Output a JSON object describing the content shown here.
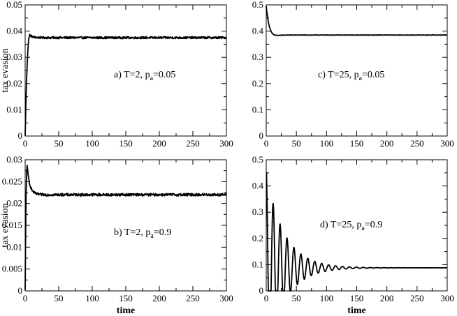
{
  "chart_data": [
    {
      "id": "a",
      "type": "line",
      "annotation": {
        "main": "a) T=2, p",
        "sub": "a",
        "tail": "=0.05"
      },
      "xlabel": "",
      "ylabel": "tax evasion",
      "xlim": [
        0,
        300
      ],
      "ylim": [
        0,
        0.05
      ],
      "xticks": [
        "0",
        "50",
        "100",
        "150",
        "200",
        "250",
        "300"
      ],
      "yticks": [
        "0",
        "0.01",
        "0.02",
        "0.03",
        "0.04",
        "0.05"
      ],
      "dynamics": {
        "kind": "overshoot",
        "start": 0.0,
        "peak_t": 7,
        "peak": 0.0385,
        "steady": 0.0375,
        "noise": 0.0004,
        "osc_amp": 0,
        "osc_period": 0,
        "osc_decay": 0
      }
    },
    {
      "id": "c",
      "type": "line",
      "annotation": {
        "main": "c) T=25, p",
        "sub": "a",
        "tail": "=0.05"
      },
      "xlabel": "",
      "ylabel": "",
      "xlim": [
        0,
        300
      ],
      "ylim": [
        0,
        0.5
      ],
      "xticks": [
        "0",
        "50",
        "100",
        "150",
        "200",
        "250",
        "300"
      ],
      "yticks": [
        "0",
        "0.1",
        "0.2",
        "0.3",
        "0.4",
        "0.5"
      ],
      "dynamics": {
        "kind": "decay",
        "start": 0.495,
        "peak_t": 1,
        "peak": 0.495,
        "steady": 0.385,
        "noise": 0.0008,
        "osc_amp": 0,
        "osc_period": 0,
        "osc_decay": 0
      }
    },
    {
      "id": "b",
      "type": "line",
      "annotation": {
        "main": "b) T=2, p",
        "sub": "a",
        "tail": "=0.9"
      },
      "xlabel": "time",
      "ylabel": "tax evasion",
      "xlim": [
        0,
        300
      ],
      "ylim": [
        0,
        0.03
      ],
      "xticks": [
        "0",
        "50",
        "100",
        "150",
        "200",
        "250",
        "300"
      ],
      "yticks": [
        "0",
        "0.005",
        "0.01",
        "0.015",
        "0.02",
        "0.025",
        "0.03"
      ],
      "dynamics": {
        "kind": "overshoot",
        "start": 0.0,
        "peak_t": 3,
        "peak": 0.0285,
        "steady": 0.022,
        "noise": 0.0003,
        "osc_amp": 0,
        "osc_period": 0,
        "osc_decay": 0
      }
    },
    {
      "id": "d",
      "type": "line",
      "annotation": {
        "main": "d) T=25, p",
        "sub": "a",
        "tail": "=0.9"
      },
      "xlabel": "time",
      "ylabel": "",
      "xlim": [
        0,
        300
      ],
      "ylim": [
        0,
        0.5
      ],
      "xticks": [
        "0",
        "50",
        "100",
        "150",
        "200",
        "250",
        "300"
      ],
      "yticks": [
        "0",
        "0.1",
        "0.2",
        "0.3",
        "0.4",
        "0.5"
      ],
      "dynamics": {
        "kind": "oscillation",
        "start": 0.45,
        "peak_t": 0,
        "peak": 0.45,
        "steady": 0.088,
        "noise": 0.0005,
        "osc_amp": 0.36,
        "osc_period": 11.5,
        "osc_decay": 30
      }
    }
  ]
}
